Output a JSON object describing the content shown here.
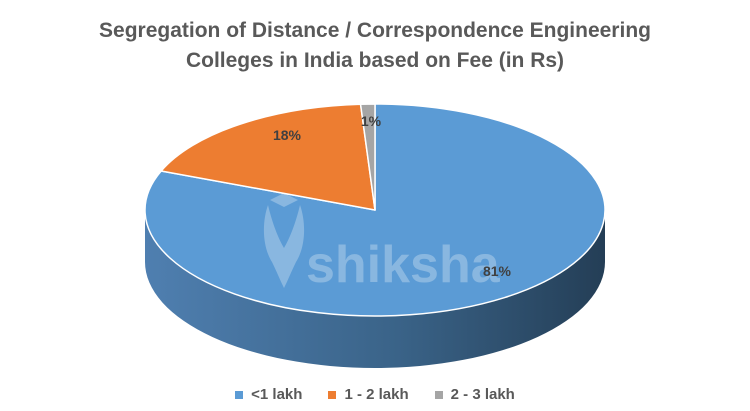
{
  "chart_data": {
    "type": "pie",
    "title_line1": "Segregation of Distance / Correspondence Engineering",
    "title_line2": "Colleges in India based on Fee (in Rs)",
    "slices": [
      {
        "name": "<1 lakh",
        "value": 81,
        "label": "81%",
        "color": "#5B9BD5",
        "side_color": "#3E6F99"
      },
      {
        "name": "1 - 2 lakh",
        "value": 18,
        "label": "18%",
        "color": "#ED7D31",
        "side_color": "#B35A1F"
      },
      {
        "name": "2 - 3 lakh",
        "value": 1,
        "label": "1%",
        "color": "#A5A5A5",
        "side_color": "#7F7F7F"
      }
    ],
    "legend_position": "bottom",
    "style": "3d-pie"
  },
  "watermark": {
    "text": "shiksha"
  }
}
